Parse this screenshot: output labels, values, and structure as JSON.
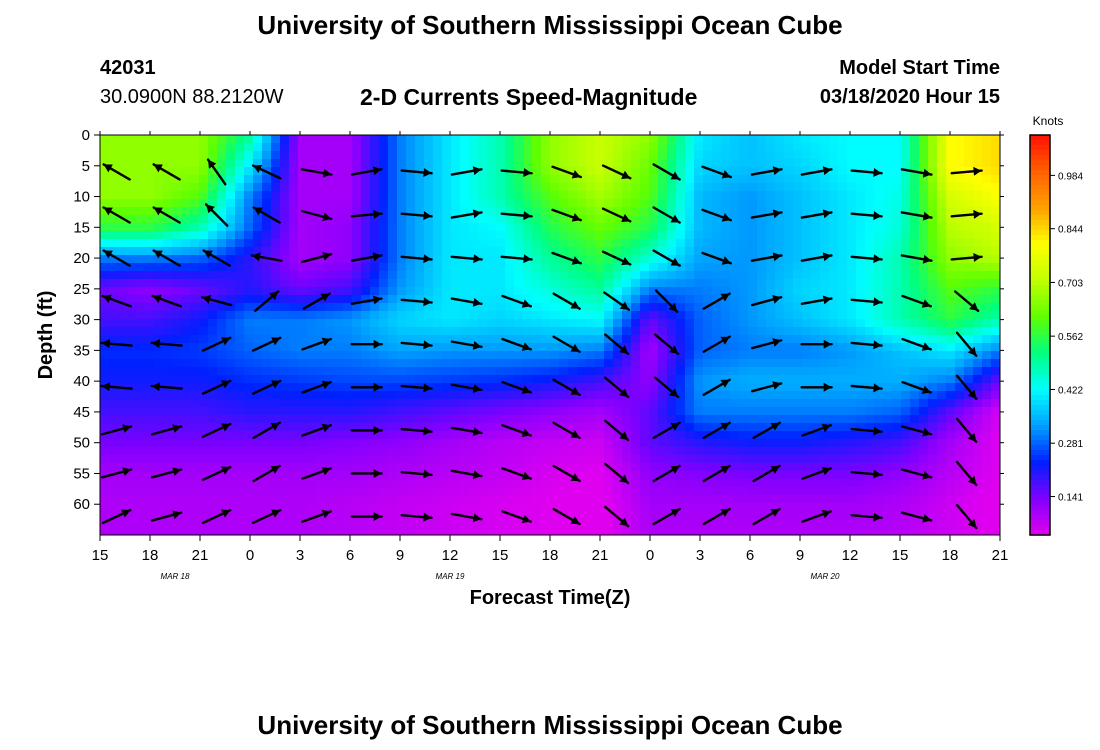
{
  "header": {
    "title": "University of Southern Mississippi Ocean Cube",
    "station_id": "42031",
    "station_coords": "30.0900N 88.2120W",
    "plot_title": "2-D Currents Speed-Magnitude",
    "model_start_label": "Model Start Time",
    "model_start_value": "03/18/2020 Hour 15"
  },
  "footer": {
    "title": "University of Southern Mississippi Ocean Cube"
  },
  "chart_data": {
    "type": "heatmap",
    "title": "2-D Currents Speed-Magnitude",
    "xlabel": "Forecast Time(Z)",
    "ylabel": "Depth (ft)",
    "x_ticks": [
      "15",
      "18",
      "21",
      "0",
      "3",
      "6",
      "9",
      "12",
      "15",
      "18",
      "21",
      "0",
      "3",
      "6",
      "9",
      "12",
      "15",
      "18",
      "21"
    ],
    "date_labels": [
      "MAR 18",
      "MAR 19",
      "MAR 20"
    ],
    "ylim": [
      0,
      65
    ],
    "y_ticks": [
      0,
      5,
      10,
      15,
      20,
      25,
      30,
      35,
      40,
      45,
      50,
      55,
      60
    ],
    "colorbar": {
      "label": "Knots",
      "ticks": [
        "0.984",
        "0.844",
        "0.703",
        "0.562",
        "0.422",
        "0.281",
        "0.141"
      ],
      "range": [
        0.04,
        1.09
      ],
      "colors": [
        "#e000f0",
        "#8000ff",
        "#0020ff",
        "#00a0ff",
        "#00ffff",
        "#00ff80",
        "#60ff00",
        "#c0ff00",
        "#ffff00",
        "#ffa000",
        "#ff6000",
        "#ff1000"
      ]
    },
    "hours": [
      15,
      18,
      21,
      24,
      27,
      30,
      33,
      36,
      39,
      42,
      45,
      48,
      51,
      54,
      57,
      60,
      63,
      66,
      69
    ],
    "depths": [
      0,
      5,
      10,
      15,
      20,
      25,
      30,
      35,
      40,
      45,
      50,
      55,
      60,
      65
    ],
    "speed_grid": [
      [
        0.66,
        0.66,
        0.66,
        0.5,
        0.1,
        0.1,
        0.3,
        0.4,
        0.48,
        0.66,
        0.72,
        0.66,
        0.4,
        0.36,
        0.4,
        0.42,
        0.42,
        0.8,
        0.84
      ],
      [
        0.66,
        0.66,
        0.66,
        0.4,
        0.1,
        0.1,
        0.3,
        0.4,
        0.48,
        0.66,
        0.72,
        0.62,
        0.38,
        0.36,
        0.38,
        0.42,
        0.42,
        0.8,
        0.84
      ],
      [
        0.66,
        0.66,
        0.6,
        0.3,
        0.1,
        0.1,
        0.3,
        0.4,
        0.48,
        0.6,
        0.68,
        0.6,
        0.35,
        0.32,
        0.36,
        0.4,
        0.44,
        0.74,
        0.8
      ],
      [
        0.56,
        0.56,
        0.48,
        0.28,
        0.1,
        0.12,
        0.3,
        0.4,
        0.42,
        0.55,
        0.62,
        0.55,
        0.35,
        0.32,
        0.36,
        0.4,
        0.45,
        0.7,
        0.74
      ],
      [
        0.3,
        0.3,
        0.28,
        0.2,
        0.1,
        0.12,
        0.3,
        0.4,
        0.4,
        0.5,
        0.56,
        0.45,
        0.33,
        0.32,
        0.36,
        0.4,
        0.48,
        0.66,
        0.7
      ],
      [
        0.15,
        0.12,
        0.15,
        0.2,
        0.15,
        0.18,
        0.32,
        0.4,
        0.4,
        0.45,
        0.5,
        0.3,
        0.3,
        0.32,
        0.38,
        0.4,
        0.48,
        0.6,
        0.56
      ],
      [
        0.18,
        0.18,
        0.22,
        0.3,
        0.3,
        0.32,
        0.38,
        0.4,
        0.38,
        0.4,
        0.42,
        0.15,
        0.28,
        0.32,
        0.36,
        0.4,
        0.48,
        0.56,
        0.48
      ],
      [
        0.24,
        0.24,
        0.25,
        0.28,
        0.3,
        0.3,
        0.33,
        0.32,
        0.32,
        0.32,
        0.3,
        0.1,
        0.28,
        0.3,
        0.3,
        0.32,
        0.36,
        0.4,
        0.3
      ],
      [
        0.22,
        0.22,
        0.22,
        0.24,
        0.25,
        0.26,
        0.26,
        0.25,
        0.24,
        0.22,
        0.18,
        0.12,
        0.32,
        0.34,
        0.34,
        0.34,
        0.34,
        0.3,
        0.15
      ],
      [
        0.18,
        0.18,
        0.18,
        0.2,
        0.2,
        0.2,
        0.18,
        0.16,
        0.14,
        0.12,
        0.1,
        0.16,
        0.3,
        0.3,
        0.3,
        0.3,
        0.28,
        0.16,
        0.05
      ],
      [
        0.14,
        0.14,
        0.14,
        0.14,
        0.14,
        0.13,
        0.12,
        0.1,
        0.08,
        0.07,
        0.06,
        0.16,
        0.2,
        0.22,
        0.22,
        0.2,
        0.18,
        0.1,
        0.04
      ],
      [
        0.1,
        0.1,
        0.1,
        0.1,
        0.1,
        0.1,
        0.09,
        0.08,
        0.07,
        0.05,
        0.04,
        0.12,
        0.13,
        0.14,
        0.14,
        0.14,
        0.12,
        0.08,
        0.04
      ],
      [
        0.09,
        0.09,
        0.09,
        0.09,
        0.09,
        0.08,
        0.07,
        0.06,
        0.05,
        0.04,
        0.03,
        0.1,
        0.1,
        0.1,
        0.1,
        0.1,
        0.09,
        0.06,
        0.03
      ],
      [
        0.09,
        0.09,
        0.09,
        0.09,
        0.09,
        0.08,
        0.07,
        0.06,
        0.05,
        0.04,
        0.03,
        0.09,
        0.09,
        0.09,
        0.09,
        0.09,
        0.08,
        0.06,
        0.03
      ]
    ],
    "vectors": {
      "hours": [
        16,
        19,
        22,
        25,
        28,
        31,
        34,
        37,
        40,
        43,
        46,
        49,
        52,
        55,
        58,
        61,
        64,
        67,
        70
      ],
      "depths": [
        6,
        13,
        20,
        27,
        34,
        41,
        48,
        55,
        62
      ],
      "direction_deg": [
        [
          300,
          300,
          325,
          295,
          100,
          80,
          95,
          80,
          95,
          110,
          115,
          120,
          110,
          80,
          80,
          95,
          100,
          85,
          115
        ],
        [
          300,
          300,
          315,
          300,
          105,
          85,
          95,
          80,
          95,
          110,
          115,
          120,
          110,
          80,
          80,
          95,
          100,
          85,
          115
        ],
        [
          300,
          300,
          300,
          280,
          75,
          80,
          95,
          95,
          95,
          110,
          115,
          120,
          110,
          80,
          80,
          95,
          100,
          85,
          115
        ],
        [
          290,
          290,
          285,
          50,
          60,
          80,
          95,
          100,
          110,
          120,
          125,
          135,
          60,
          75,
          80,
          95,
          110,
          130,
          130
        ],
        [
          275,
          275,
          65,
          65,
          70,
          90,
          95,
          100,
          110,
          120,
          130,
          130,
          60,
          75,
          90,
          95,
          110,
          140,
          130
        ],
        [
          275,
          275,
          65,
          65,
          70,
          90,
          95,
          100,
          110,
          120,
          130,
          130,
          60,
          75,
          90,
          95,
          110,
          140,
          130
        ],
        [
          75,
          75,
          65,
          60,
          70,
          90,
          95,
          100,
          110,
          120,
          130,
          60,
          60,
          60,
          70,
          95,
          105,
          140,
          130
        ],
        [
          75,
          75,
          65,
          60,
          70,
          90,
          95,
          100,
          110,
          120,
          130,
          60,
          60,
          60,
          70,
          95,
          105,
          140,
          130
        ],
        [
          65,
          75,
          65,
          65,
          70,
          90,
          95,
          100,
          110,
          120,
          130,
          60,
          60,
          60,
          70,
          95,
          105,
          140,
          130
        ]
      ]
    }
  }
}
